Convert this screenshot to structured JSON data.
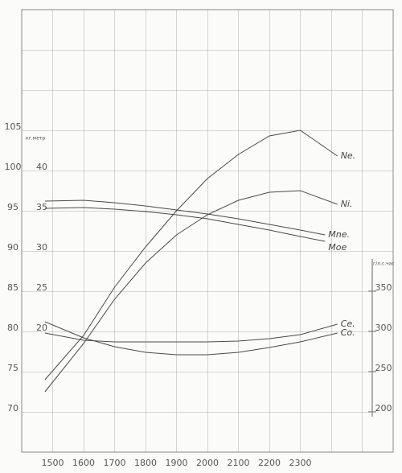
{
  "chart_data": {
    "type": "line",
    "xlim": [
      1400,
      2600
    ],
    "xticks": [
      1500,
      1600,
      1700,
      1800,
      1900,
      2000,
      2100,
      2200,
      2300
    ],
    "ylim": [
      65,
      120
    ],
    "yticks": [
      70,
      75,
      80,
      85,
      90,
      95,
      100,
      105
    ],
    "y2lim": [
      5,
      60
    ],
    "y2ticks": [
      20,
      25,
      30,
      35,
      40
    ],
    "y2label": "кг.метр",
    "y3lim": [
      150,
      700
    ],
    "y3ticks": [
      200,
      250,
      300,
      350
    ],
    "y3label": "г/л.с.час",
    "grid": true,
    "color": "#4a4a4a",
    "series": [
      {
        "name": "Ne.",
        "x": [
          1475,
          1600,
          1700,
          1800,
          1900,
          2000,
          2100,
          2200,
          2300,
          2420
        ],
        "values": [
          74,
          79.5,
          85.5,
          90.5,
          95,
          99,
          102,
          104.3,
          105,
          101.8
        ]
      },
      {
        "name": "Ni.",
        "x": [
          1475,
          1600,
          1700,
          1800,
          1900,
          2000,
          2100,
          2200,
          2300,
          2420
        ],
        "values": [
          72.5,
          78.5,
          84,
          88.5,
          92,
          94.5,
          96.3,
          97.3,
          97.5,
          95.8
        ]
      },
      {
        "name": "Mne.",
        "axis": "y2",
        "x": [
          1475,
          1600,
          1700,
          1800,
          1900,
          2000,
          2100,
          2200,
          2300,
          2380
        ],
        "values": [
          36.2,
          36.3,
          36,
          35.6,
          35.1,
          34.6,
          34,
          33.3,
          32.6,
          32
        ]
      },
      {
        "name": "Moe",
        "axis": "y2",
        "x": [
          1475,
          1600,
          1700,
          1800,
          1900,
          2000,
          2100,
          2200,
          2300,
          2380
        ],
        "values": [
          35.3,
          35.4,
          35.2,
          34.9,
          34.5,
          34,
          33.3,
          32.6,
          31.8,
          31.2
        ]
      },
      {
        "name": "Ce.",
        "axis": "y3",
        "x": [
          1475,
          1600,
          1700,
          1800,
          1900,
          2000,
          2100,
          2200,
          2300,
          2420
        ],
        "values": [
          298,
          289,
          287,
          287,
          287,
          287,
          288,
          291,
          296,
          309
        ]
      },
      {
        "name": "Co.",
        "axis": "y3",
        "x": [
          1475,
          1600,
          1700,
          1800,
          1900,
          2000,
          2100,
          2200,
          2300,
          2420
        ],
        "values": [
          312,
          292,
          281,
          274,
          271,
          271,
          274,
          280,
          287,
          298
        ]
      }
    ]
  }
}
